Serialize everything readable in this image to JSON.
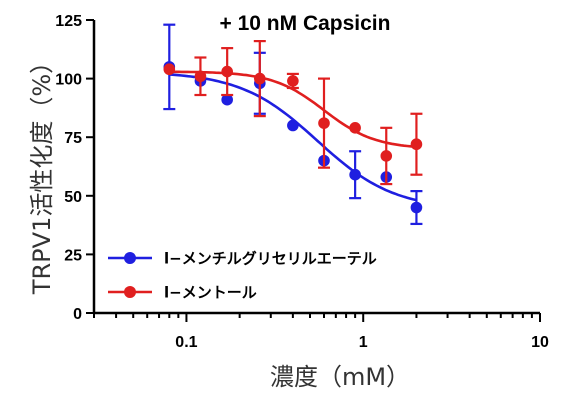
{
  "chart_data": {
    "type": "scatter",
    "title": "+ 10 nM Capsicin",
    "xlabel": "濃度（mM）",
    "ylabel": "TRPV1活性化度（%）",
    "xscale": "log",
    "xlim": [
      0.03,
      10
    ],
    "ylim": [
      0,
      125
    ],
    "x_ticks": [
      0.1,
      1,
      10
    ],
    "x_tick_labels": [
      "0.1",
      "1",
      "10"
    ],
    "y_ticks": [
      0,
      25,
      50,
      75,
      100,
      125
    ],
    "y_tick_labels": [
      "0",
      "25",
      "50",
      "75",
      "100",
      "125"
    ],
    "legend_position": "lower-left",
    "grid": false,
    "series": [
      {
        "name": "l−メンチルグリセリルエーテル",
        "color": "#1f1fe0",
        "x": [
          0.08,
          0.12,
          0.17,
          0.26,
          0.4,
          0.6,
          0.9,
          1.35,
          2.0
        ],
        "y": [
          105,
          99,
          91,
          98,
          80,
          65,
          59,
          58,
          45
        ],
        "err": [
          18,
          0,
          0,
          13,
          0,
          0,
          10,
          0,
          7
        ],
        "fit": {
          "top": 103,
          "bottom": 44,
          "ec50": 0.55,
          "hill": 2.0
        }
      },
      {
        "name": "l−メントール",
        "color": "#e01f1f",
        "x": [
          0.08,
          0.12,
          0.17,
          0.26,
          0.4,
          0.6,
          0.9,
          1.35,
          2.0
        ],
        "y": [
          104,
          101,
          103,
          100,
          99,
          81,
          79,
          67,
          72
        ],
        "err": [
          0,
          8,
          10,
          16,
          3,
          19,
          0,
          12,
          13
        ],
        "fit": {
          "top": 103,
          "bottom": 70,
          "ec50": 0.6,
          "hill": 3.0
        }
      }
    ]
  }
}
